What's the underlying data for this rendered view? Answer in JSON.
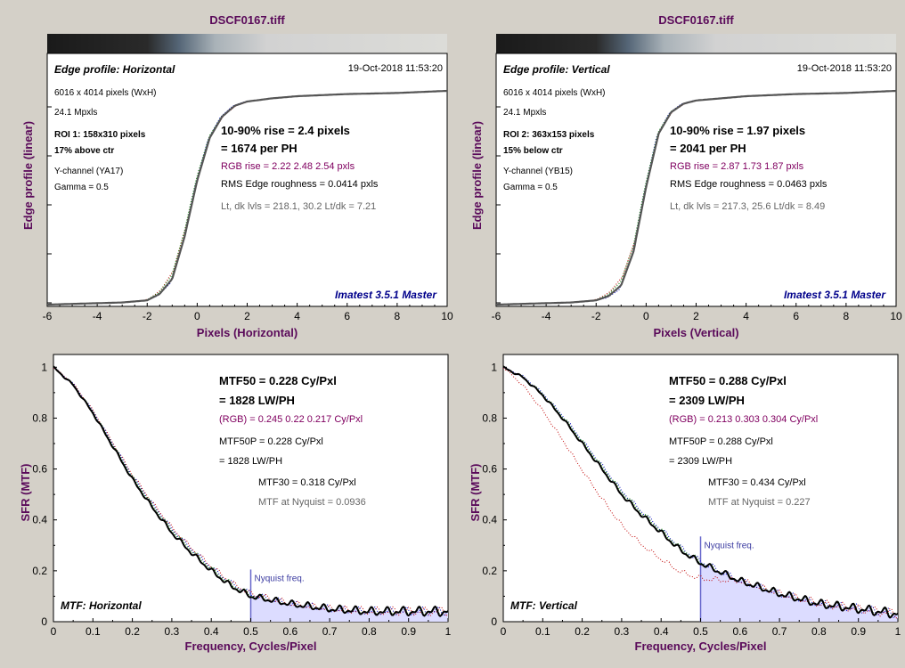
{
  "colors": {
    "background": "#d4d0c8",
    "plot_bg": "#ffffff",
    "title": "#5a0a5a",
    "rgb_text": "#800060",
    "brand": "#00008b",
    "nyquist_line": "#6666cc",
    "mtf_fill": "#dcdcff"
  },
  "edge_panels": [
    {
      "id": "h",
      "title": "DSCF0167.tiff",
      "label": "Edge profile: Horizontal",
      "date": "19-Oct-2018 11:53:20",
      "info": [
        "6016 x 4014 pixels (WxH)",
        "24.1 Mpxls"
      ],
      "roi": [
        "ROI 1:  158x310 pixels",
        "17% above ctr"
      ],
      "channel": [
        "Y-channel  (YA17)",
        "Gamma = 0.5"
      ],
      "rise": "10-90% rise = 2.4 pixels",
      "per_ph": "= 1674 per PH",
      "rgb_rise": "RGB rise = 2.22  2.48  2.54 pxls",
      "rms": "RMS Edge roughness = 0.0414 pxls",
      "levels": "Lt, dk lvls = 218.1, 30.2   Lt/dk = 7.21",
      "brand": "Imatest 3.5.1 Master",
      "xlabel": "Pixels (Horizontal)",
      "ylabel": "Edge profile (linear)",
      "xticks": [
        "-6",
        "-4",
        "-2",
        "0",
        "2",
        "4",
        "6",
        "8",
        "10"
      ]
    },
    {
      "id": "v",
      "title": "DSCF0167.tiff",
      "label": "Edge profile: Vertical",
      "date": "19-Oct-2018 11:53:20",
      "info": [
        "6016 x 4014 pixels (WxH)",
        "24.1 Mpxls"
      ],
      "roi": [
        "ROI 2:  363x153 pixels",
        "15% below ctr"
      ],
      "channel": [
        "Y-channel  (YB15)",
        "Gamma = 0.5"
      ],
      "rise": "10-90% rise = 1.97 pixels",
      "per_ph": "= 2041 per PH",
      "rgb_rise": "RGB rise = 2.87  1.73  1.87 pxls",
      "rms": "RMS Edge roughness = 0.0463 pxls",
      "levels": "Lt, dk lvls = 217.3, 25.6   Lt/dk = 8.49",
      "brand": "Imatest 3.5.1 Master",
      "xlabel": "Pixels (Vertical)",
      "ylabel": "Edge profile (linear)",
      "xticks": [
        "-6",
        "-4",
        "-2",
        "0",
        "2",
        "4",
        "6",
        "8",
        "10"
      ]
    }
  ],
  "mtf_panels": [
    {
      "id": "h",
      "label": "MTF: Horizontal",
      "mtf50": "MTF50 = 0.228 Cy/Pxl",
      "mtf50_lw": "= 1828 LW/PH",
      "rgb": "(RGB) = 0.245  0.22  0.217 Cy/Pxl",
      "mtf50p": "MTF50P = 0.228 Cy/Pxl",
      "mtf50p_lw": "= 1828 LW/PH",
      "mtf30": "MTF30 = 0.318 Cy/Pxl",
      "nyq_mtf": "MTF at Nyquist = 0.0936",
      "nyq_label": "Nyquist freq.",
      "xlabel": "Frequency, Cycles/Pixel",
      "ylabel": "SFR (MTF)",
      "xticks": [
        "0",
        "0.1",
        "0.2",
        "0.3",
        "0.4",
        "0.5",
        "0.6",
        "0.7",
        "0.8",
        "0.9",
        "1"
      ],
      "yticks": [
        "0",
        "0.2",
        "0.4",
        "0.6",
        "0.8",
        "1"
      ]
    },
    {
      "id": "v",
      "label": "MTF: Vertical",
      "mtf50": "MTF50 = 0.288 Cy/Pxl",
      "mtf50_lw": "= 2309 LW/PH",
      "rgb": "(RGB) = 0.213  0.303  0.304 Cy/Pxl",
      "mtf50p": "MTF50P = 0.288 Cy/Pxl",
      "mtf50p_lw": "= 2309 LW/PH",
      "mtf30": "MTF30 = 0.434 Cy/Pxl",
      "nyq_mtf": "MTF at Nyquist = 0.227",
      "nyq_label": "Nyquist freq.",
      "xlabel": "Frequency, Cycles/Pixel",
      "ylabel": "SFR (MTF)",
      "xticks": [
        "0",
        "0.1",
        "0.2",
        "0.3",
        "0.4",
        "0.5",
        "0.6",
        "0.7",
        "0.8",
        "0.9",
        "1"
      ],
      "yticks": [
        "0",
        "0.2",
        "0.4",
        "0.6",
        "0.8",
        "1"
      ]
    }
  ],
  "chart_data": [
    {
      "type": "line",
      "id": "edge-h",
      "title": "DSCF0167.tiff",
      "xlabel": "Pixels (Horizontal)",
      "ylabel": "Edge profile (linear)",
      "xlim": [
        -6,
        10
      ],
      "series": [
        {
          "values_x": [
            -6,
            -3,
            -2,
            -1.5,
            -1,
            -0.5,
            0,
            0.5,
            1,
            1.5,
            2,
            3,
            4,
            6,
            8,
            10
          ],
          "values_y": [
            0.0,
            0.01,
            0.02,
            0.05,
            0.12,
            0.32,
            0.58,
            0.78,
            0.88,
            0.93,
            0.95,
            0.965,
            0.975,
            0.985,
            0.99,
            1.0
          ]
        }
      ]
    },
    {
      "type": "line",
      "id": "edge-v",
      "title": "DSCF0167.tiff",
      "xlabel": "Pixels (Vertical)",
      "ylabel": "Edge profile (linear)",
      "xlim": [
        -6,
        10
      ],
      "series": [
        {
          "values_x": [
            -6,
            -3,
            -2,
            -1.5,
            -1,
            -0.5,
            0,
            0.5,
            1,
            1.5,
            2,
            3,
            4,
            6,
            8,
            10
          ],
          "values_y": [
            0.0,
            0.01,
            0.02,
            0.04,
            0.09,
            0.25,
            0.55,
            0.8,
            0.9,
            0.94,
            0.955,
            0.965,
            0.975,
            0.985,
            0.99,
            1.0
          ]
        }
      ]
    },
    {
      "type": "line",
      "id": "mtf-h",
      "xlabel": "Frequency, Cycles/Pixel",
      "ylabel": "SFR (MTF)",
      "xlim": [
        0,
        1
      ],
      "ylim": [
        0,
        1.05
      ],
      "series": [
        {
          "values_x": [
            0,
            0.05,
            0.1,
            0.15,
            0.2,
            0.25,
            0.3,
            0.35,
            0.4,
            0.45,
            0.5,
            0.6,
            0.7,
            0.8,
            0.9,
            1.0
          ],
          "values_y": [
            1.0,
            0.93,
            0.82,
            0.69,
            0.56,
            0.45,
            0.35,
            0.27,
            0.2,
            0.14,
            0.1,
            0.07,
            0.05,
            0.04,
            0.04,
            0.04
          ]
        }
      ],
      "nyquist": 0.5
    },
    {
      "type": "line",
      "id": "mtf-v",
      "xlabel": "Frequency, Cycles/Pixel",
      "ylabel": "SFR (MTF)",
      "xlim": [
        0,
        1
      ],
      "ylim": [
        0,
        1.05
      ],
      "series": [
        {
          "values_x": [
            0,
            0.05,
            0.1,
            0.15,
            0.2,
            0.25,
            0.3,
            0.35,
            0.4,
            0.45,
            0.5,
            0.6,
            0.7,
            0.8,
            0.9,
            1.0
          ],
          "values_y": [
            1.0,
            0.96,
            0.89,
            0.8,
            0.7,
            0.6,
            0.5,
            0.42,
            0.35,
            0.28,
            0.23,
            0.16,
            0.11,
            0.07,
            0.05,
            0.03
          ]
        }
      ],
      "nyquist": 0.5
    }
  ]
}
